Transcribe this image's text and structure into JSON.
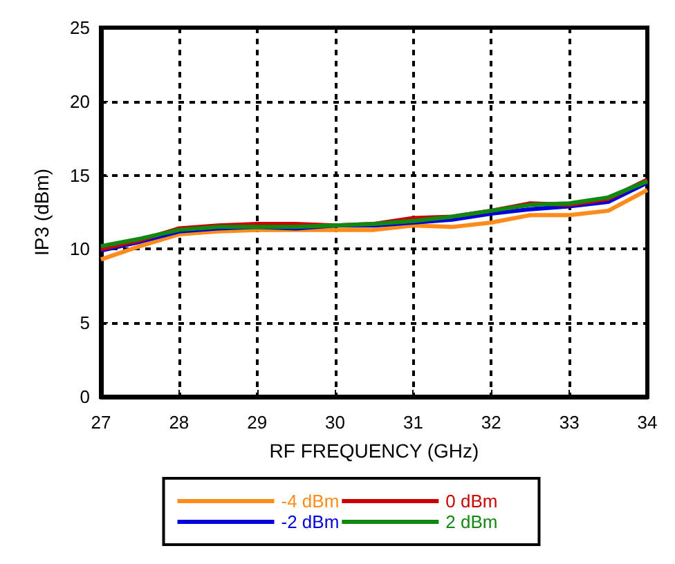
{
  "chart_data": {
    "type": "line",
    "xlabel": "RF FREQUENCY (GHz)",
    "ylabel": "IP3 (dBm)",
    "x": [
      27,
      27.5,
      28,
      28.5,
      29,
      29.5,
      30,
      30.5,
      31,
      31.5,
      32,
      32.5,
      33,
      33.5,
      34
    ],
    "series": [
      {
        "name": "-4 dBm",
        "color": "#ff8c1a",
        "values": [
          9.3,
          10.2,
          11.0,
          11.2,
          11.3,
          11.3,
          11.3,
          11.3,
          11.6,
          11.5,
          11.8,
          12.3,
          12.3,
          12.6,
          14.0
        ]
      },
      {
        "name": "-2 dBm",
        "color": "#0000dd",
        "values": [
          9.9,
          10.5,
          11.2,
          11.4,
          11.5,
          11.4,
          11.6,
          11.6,
          11.8,
          12.0,
          12.4,
          12.7,
          12.9,
          13.2,
          14.5
        ]
      },
      {
        "name": "0 dBm",
        "color": "#cc0000",
        "values": [
          10.0,
          10.6,
          11.4,
          11.6,
          11.7,
          11.7,
          11.6,
          11.7,
          12.1,
          12.2,
          12.6,
          13.1,
          13.0,
          13.4,
          14.7
        ]
      },
      {
        "name": "2 dBm",
        "color": "#118811",
        "values": [
          10.2,
          10.7,
          11.3,
          11.5,
          11.5,
          11.5,
          11.6,
          11.7,
          11.9,
          12.2,
          12.6,
          13.0,
          13.1,
          13.5,
          14.6
        ]
      }
    ],
    "xlim": [
      27,
      34
    ],
    "xticks": [
      27,
      28,
      29,
      30,
      31,
      32,
      33,
      34
    ],
    "ylim": [
      0,
      25
    ],
    "yticks": [
      0,
      5,
      10,
      15,
      20,
      25
    ],
    "grid": true,
    "legend": "bottom",
    "marker": "none",
    "line_style": "solid"
  }
}
